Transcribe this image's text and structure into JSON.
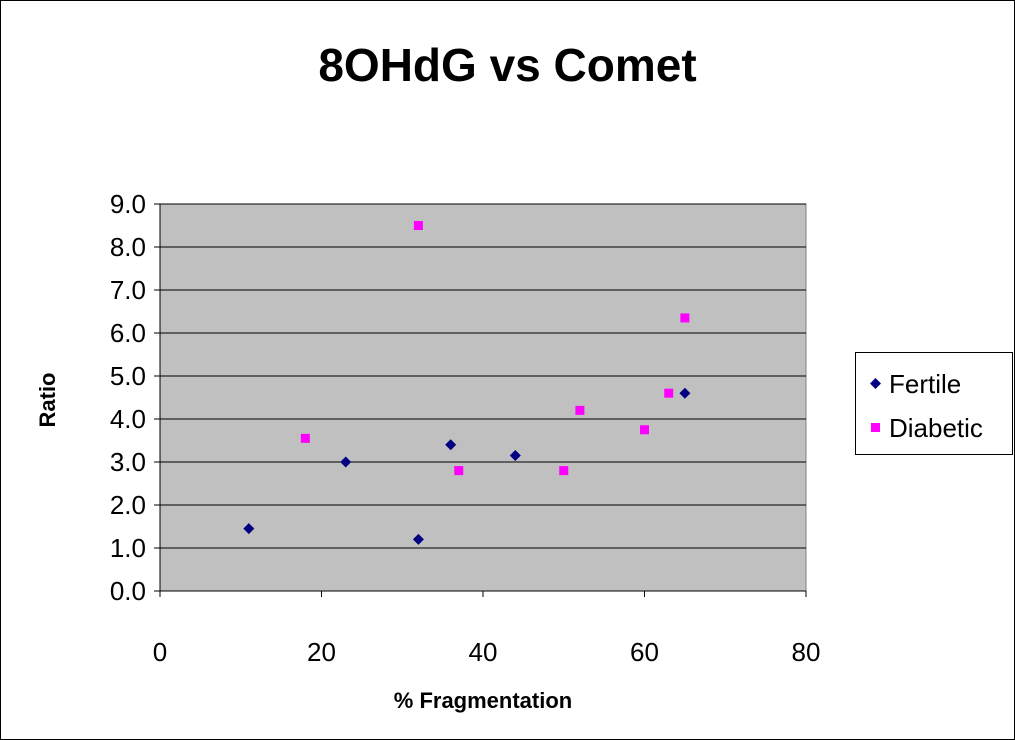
{
  "chart_data": {
    "type": "scatter",
    "title": "8OHdG vs Comet",
    "xlabel": "% Fragmentation",
    "ylabel": "Ratio",
    "xlim": [
      0,
      80
    ],
    "ylim": [
      0,
      9
    ],
    "x_ticks": [
      "0",
      "20",
      "40",
      "60",
      "80"
    ],
    "y_ticks": [
      "0.0",
      "1.0",
      "2.0",
      "3.0",
      "4.0",
      "5.0",
      "6.0",
      "7.0",
      "8.0",
      "9.0"
    ],
    "grid": "horizontal",
    "plot_background": "#c0c0c0",
    "legend_position": "right",
    "series": [
      {
        "name": "Fertile",
        "marker": "diamond",
        "color": "#000080",
        "points": [
          {
            "x": 11,
            "y": 1.45
          },
          {
            "x": 23,
            "y": 3.0
          },
          {
            "x": 32,
            "y": 1.2
          },
          {
            "x": 36,
            "y": 3.4
          },
          {
            "x": 44,
            "y": 3.15
          },
          {
            "x": 65,
            "y": 4.6
          }
        ]
      },
      {
        "name": "Diabetic",
        "marker": "square",
        "color": "#ff00ff",
        "points": [
          {
            "x": 18,
            "y": 3.55
          },
          {
            "x": 32,
            "y": 8.5
          },
          {
            "x": 37,
            "y": 2.8
          },
          {
            "x": 50,
            "y": 2.8
          },
          {
            "x": 52,
            "y": 4.2
          },
          {
            "x": 60,
            "y": 3.75
          },
          {
            "x": 63,
            "y": 4.6
          },
          {
            "x": 65,
            "y": 6.35
          }
        ]
      }
    ]
  }
}
